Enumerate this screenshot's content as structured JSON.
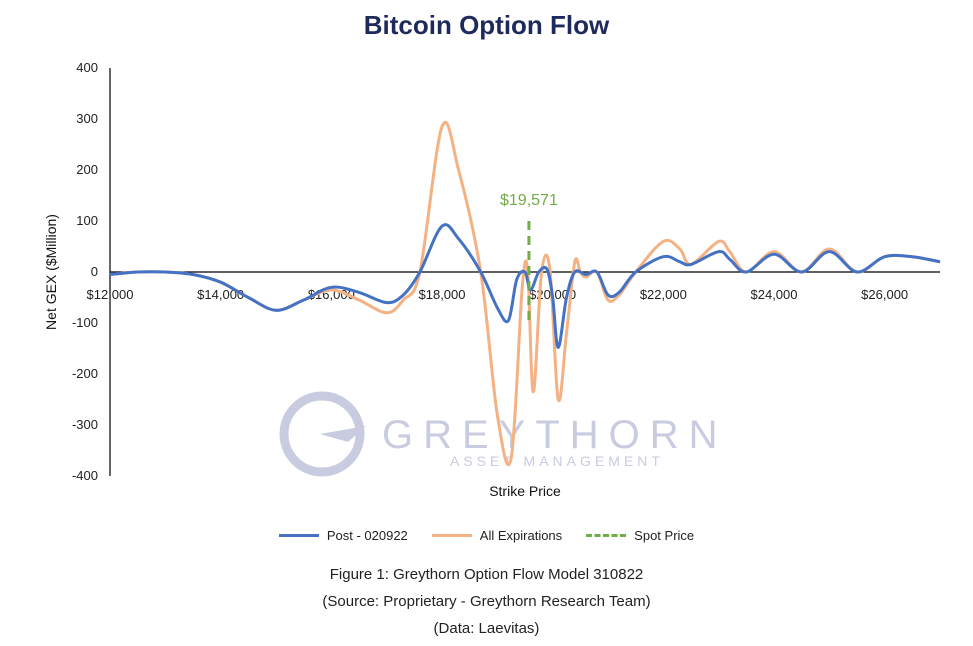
{
  "title": "Bitcoin Option Flow",
  "watermark": {
    "name": "GREYTHORN",
    "sub": "ASSET MANAGEMENT"
  },
  "captions": [
    "Figure 1: Greythorn Option Flow Model 310822",
    "(Source: Proprietary - Greythorn Research Team)",
    "(Data: Laevitas)"
  ],
  "chart_data": {
    "type": "line",
    "title": "Bitcoin Option Flow",
    "xlabel": "Strike Price",
    "ylabel": "Net GEX ($Million)",
    "xlim": [
      12000,
      27000
    ],
    "ylim": [
      -400,
      400
    ],
    "x_ticks": [
      12000,
      14000,
      16000,
      18000,
      20000,
      22000,
      24000,
      26000
    ],
    "x_tick_labels": [
      "$12,000",
      "$14,000",
      "$16,000",
      "$18,000",
      "$20,000",
      "$22,000",
      "$24,000",
      "$26,000"
    ],
    "y_ticks": [
      400,
      300,
      200,
      100,
      0,
      -100,
      -200,
      -300,
      -400
    ],
    "y_tick_labels": [
      "400",
      "300",
      "200",
      "100",
      "0",
      "-100",
      "-200",
      "-300",
      "-400"
    ],
    "grid": false,
    "legend_position": "bottom",
    "series": [
      {
        "name": "Post - 020922",
        "color": "#4472c4",
        "points": [
          [
            12000,
            -5
          ],
          [
            12500,
            0
          ],
          [
            13000,
            0
          ],
          [
            13500,
            -5
          ],
          [
            14000,
            -20
          ],
          [
            14500,
            -50
          ],
          [
            15000,
            -75
          ],
          [
            15500,
            -55
          ],
          [
            16000,
            -30
          ],
          [
            16500,
            -40
          ],
          [
            17000,
            -60
          ],
          [
            17300,
            -45
          ],
          [
            17600,
            0
          ],
          [
            18000,
            90
          ],
          [
            18300,
            65
          ],
          [
            18700,
            0
          ],
          [
            19000,
            -70
          ],
          [
            19200,
            -95
          ],
          [
            19350,
            -15
          ],
          [
            19500,
            0
          ],
          [
            19600,
            -35
          ],
          [
            19750,
            0
          ],
          [
            19900,
            5
          ],
          [
            20000,
            -50
          ],
          [
            20100,
            -148
          ],
          [
            20250,
            -50
          ],
          [
            20400,
            0
          ],
          [
            20600,
            -5
          ],
          [
            20800,
            0
          ],
          [
            21000,
            -45
          ],
          [
            21200,
            -40
          ],
          [
            21500,
            0
          ],
          [
            22000,
            30
          ],
          [
            22300,
            20
          ],
          [
            22500,
            15
          ],
          [
            23000,
            40
          ],
          [
            23200,
            25
          ],
          [
            23500,
            0
          ],
          [
            24000,
            35
          ],
          [
            24500,
            0
          ],
          [
            25000,
            40
          ],
          [
            25500,
            0
          ],
          [
            26000,
            30
          ],
          [
            26500,
            30
          ],
          [
            27000,
            20
          ]
        ]
      },
      {
        "name": "All Expirations",
        "color": "#f4b183",
        "points": [
          [
            12000,
            -5
          ],
          [
            12500,
            0
          ],
          [
            13000,
            0
          ],
          [
            13500,
            -5
          ],
          [
            14000,
            -20
          ],
          [
            14500,
            -50
          ],
          [
            15000,
            -75
          ],
          [
            15500,
            -55
          ],
          [
            16000,
            -35
          ],
          [
            16500,
            -55
          ],
          [
            17000,
            -80
          ],
          [
            17300,
            -55
          ],
          [
            17600,
            0
          ],
          [
            18000,
            285
          ],
          [
            18300,
            200
          ],
          [
            18700,
            0
          ],
          [
            19000,
            -280
          ],
          [
            19250,
            -365
          ],
          [
            19450,
            -30
          ],
          [
            19550,
            0
          ],
          [
            19650,
            -235
          ],
          [
            19800,
            0
          ],
          [
            19950,
            5
          ],
          [
            20100,
            -250
          ],
          [
            20250,
            -120
          ],
          [
            20400,
            20
          ],
          [
            20500,
            0
          ],
          [
            20600,
            -10
          ],
          [
            20800,
            0
          ],
          [
            21000,
            -55
          ],
          [
            21200,
            -45
          ],
          [
            21500,
            0
          ],
          [
            22000,
            60
          ],
          [
            22300,
            45
          ],
          [
            22500,
            15
          ],
          [
            23000,
            60
          ],
          [
            23200,
            40
          ],
          [
            23500,
            0
          ],
          [
            24000,
            40
          ],
          [
            24500,
            0
          ],
          [
            25000,
            45
          ],
          [
            25500,
            0
          ],
          [
            26000,
            30
          ],
          [
            26500,
            30
          ],
          [
            27000,
            20
          ]
        ]
      },
      {
        "name": "Spot Price",
        "color": "#70ad47",
        "dashed": true,
        "x": 19571,
        "label": "$19,571",
        "y_range": [
          -100,
          100
        ]
      }
    ]
  }
}
